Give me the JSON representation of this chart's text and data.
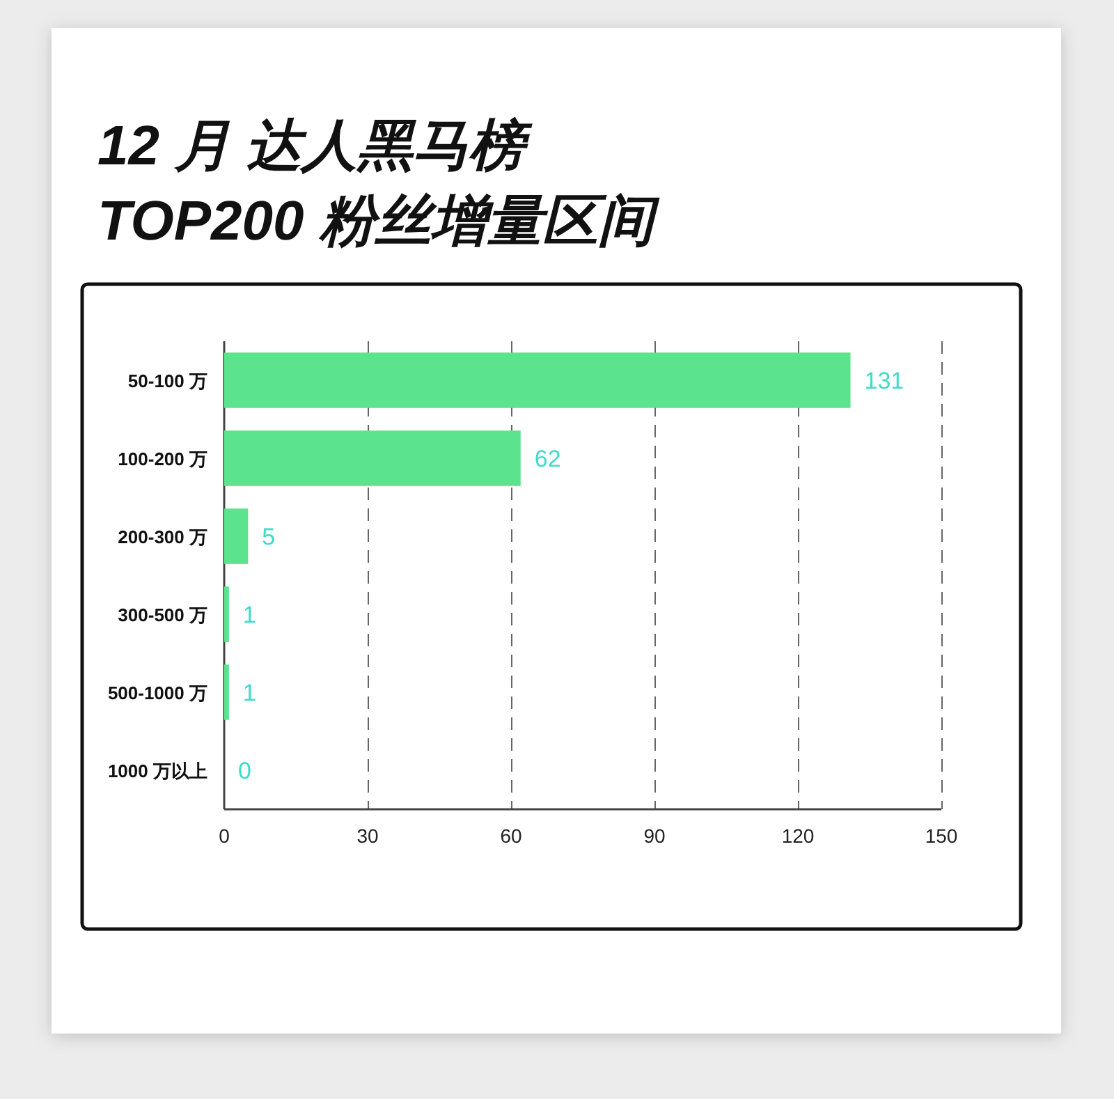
{
  "chart_data": {
    "type": "bar",
    "orientation": "horizontal",
    "title": "12 月 达人黑马榜",
    "subtitle": "TOP200 粉丝增量区间",
    "categories": [
      "50-100 万",
      "100-200 万",
      "200-300 万",
      "300-500 万",
      "500-1000 万",
      "1000 万以上"
    ],
    "values": [
      131,
      62,
      5,
      1,
      1,
      0
    ],
    "color": "#5be48d",
    "xlim": [
      0,
      150
    ],
    "xticks": [
      0,
      30,
      60,
      90,
      120,
      150
    ],
    "grid": "x",
    "data_labels": true
  }
}
